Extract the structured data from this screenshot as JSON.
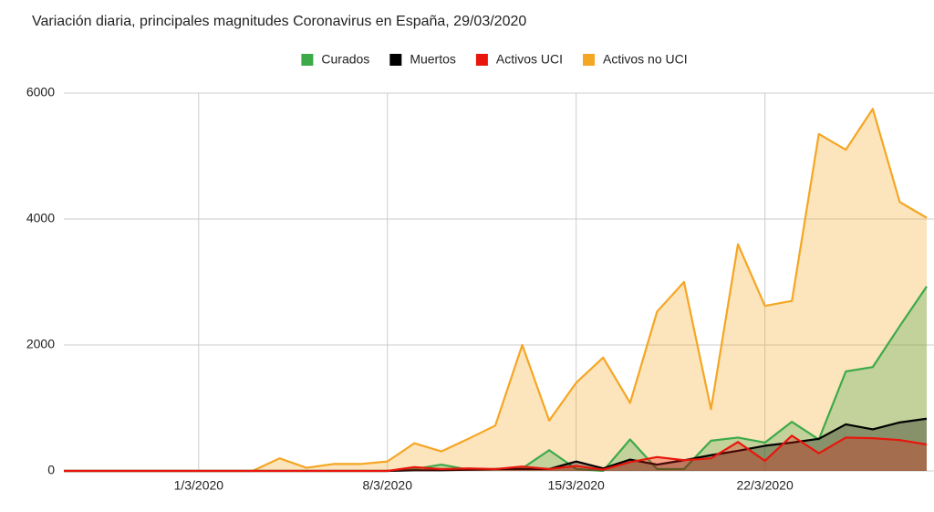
{
  "chart_data": {
    "type": "area",
    "title": "Variación diaria, principales magnitudes Coronavirus en España, 29/03/2020",
    "categories": [
      null,
      null,
      null,
      null,
      null,
      "1/3/2020",
      null,
      null,
      null,
      null,
      null,
      null,
      "8/3/2020",
      null,
      null,
      null,
      null,
      null,
      null,
      "15/3/2020",
      null,
      null,
      null,
      null,
      null,
      null,
      "22/3/2020",
      null,
      null,
      null,
      null,
      null,
      null
    ],
    "series": [
      {
        "name": "Activos no UCI",
        "color": "#f5a623",
        "values": [
          0,
          0,
          0,
          0,
          0,
          0,
          0,
          0,
          200,
          50,
          110,
          110,
          150,
          440,
          310,
          510,
          720,
          2000,
          800,
          1400,
          1800,
          1080,
          2530,
          3000,
          980,
          3600,
          2620,
          2700,
          5350,
          5100,
          5750,
          4270,
          4020
        ]
      },
      {
        "name": "Curados",
        "color": "#3daa4a",
        "values": [
          0,
          0,
          0,
          0,
          0,
          0,
          0,
          0,
          0,
          0,
          0,
          0,
          0,
          30,
          100,
          20,
          30,
          40,
          330,
          30,
          0,
          500,
          30,
          30,
          480,
          530,
          450,
          780,
          500,
          1580,
          1650,
          2300,
          2930
        ]
      },
      {
        "name": "Muertos",
        "color": "#000000",
        "values": [
          0,
          0,
          0,
          0,
          0,
          0,
          0,
          0,
          0,
          0,
          0,
          0,
          0,
          10,
          10,
          20,
          30,
          30,
          30,
          150,
          40,
          180,
          100,
          170,
          250,
          320,
          400,
          450,
          510,
          740,
          660,
          770,
          830
        ]
      },
      {
        "name": "Activos UCI",
        "color": "#e8160c",
        "values": [
          0,
          0,
          0,
          0,
          0,
          0,
          0,
          0,
          0,
          0,
          0,
          0,
          0,
          60,
          30,
          40,
          30,
          70,
          30,
          80,
          20,
          140,
          220,
          170,
          200,
          460,
          160,
          560,
          280,
          530,
          520,
          490,
          420
        ]
      }
    ],
    "legend_order": [
      "Curados",
      "Muertos",
      "Activos UCI",
      "Activos no UCI"
    ],
    "ylim": [
      0,
      6000
    ],
    "yticks": [
      0,
      2000,
      4000,
      6000
    ],
    "grid": true,
    "legend": "top"
  }
}
